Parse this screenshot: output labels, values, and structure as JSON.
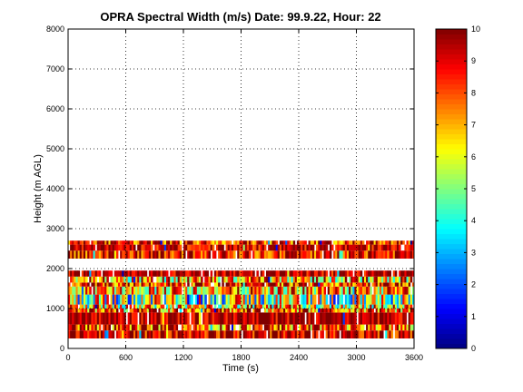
{
  "chart_data": {
    "type": "heatmap",
    "title": "OPRA Spectral Width (m/s)  Date: 99.9.22, Hour: 22",
    "xlabel": "Time (s)",
    "ylabel": "Height (m AGL)",
    "xlim": [
      0,
      3600
    ],
    "ylim": [
      0,
      8000
    ],
    "xticks": [
      0,
      600,
      1200,
      1800,
      2400,
      3000,
      3600
    ],
    "yticks": [
      0,
      1000,
      2000,
      3000,
      4000,
      5000,
      6000,
      7000,
      8000
    ],
    "grid": true,
    "colorbar": {
      "range": [
        0,
        10
      ],
      "ticks": [
        0,
        1,
        2,
        3,
        4,
        5,
        6,
        7,
        8,
        9,
        10
      ],
      "colormap": "jet"
    },
    "bands": [
      {
        "y0": 250,
        "y1": 450,
        "value": 9.3,
        "noise": 2.0
      },
      {
        "y0": 450,
        "y1": 600,
        "value": 8.2,
        "noise": 3.0
      },
      {
        "y0": 600,
        "y1": 900,
        "value": 9.6,
        "noise": 1.5
      },
      {
        "y0": 900,
        "y1": 1000,
        "value": 8.0,
        "noise": 3.0
      },
      {
        "y0": 1000,
        "y1": 1100,
        "value": 6.5,
        "noise": 3.5
      },
      {
        "y0": 1100,
        "y1": 1350,
        "value": 5.5,
        "noise": 4.0
      },
      {
        "y0": 1350,
        "y1": 1550,
        "value": 7.0,
        "noise": 3.0
      },
      {
        "y0": 1550,
        "y1": 1650,
        "value": 8.5,
        "noise": 2.5
      },
      {
        "y0": 1650,
        "y1": 1800,
        "value": 7.2,
        "noise": 3.5
      },
      {
        "y0": 1800,
        "y1": 1950,
        "value": 9.4,
        "noise": 1.5
      },
      {
        "y0": 2250,
        "y1": 2450,
        "value": 8.8,
        "noise": 2.0
      },
      {
        "y0": 2450,
        "y1": 2600,
        "value": 9.2,
        "noise": 1.5
      },
      {
        "y0": 2600,
        "y1": 2700,
        "value": 8.6,
        "noise": 2.5
      }
    ]
  }
}
